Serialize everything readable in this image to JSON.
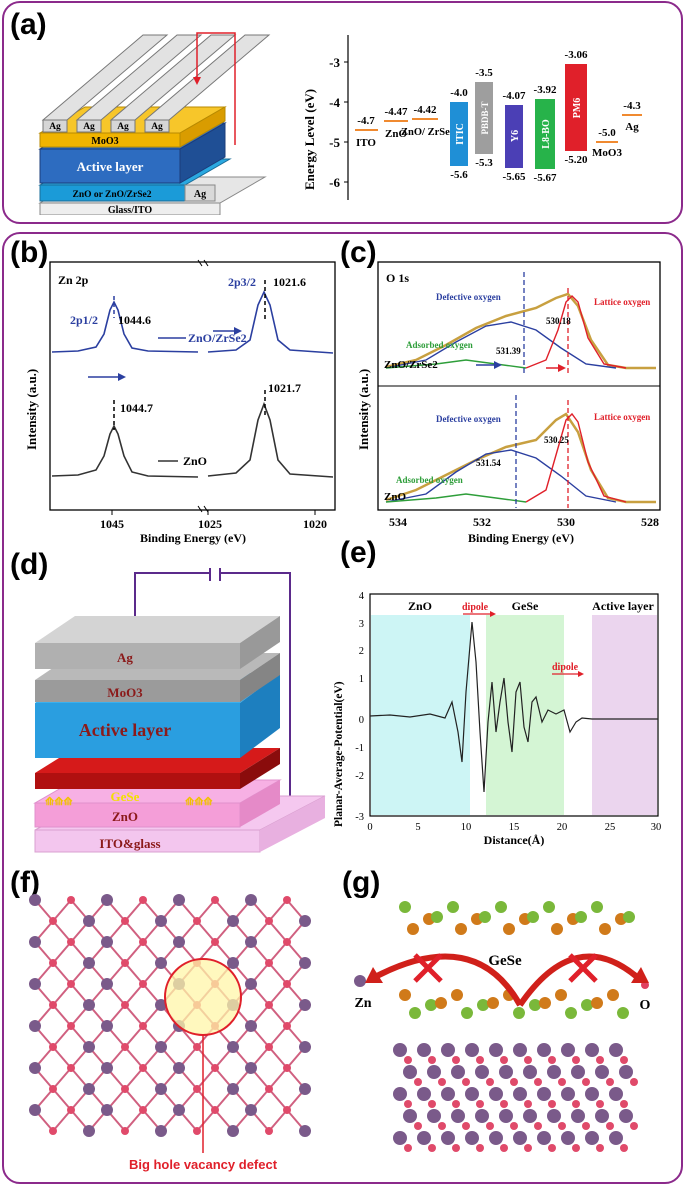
{
  "panels": {
    "a": {
      "label": "(a)",
      "device_layers": [
        "Ag",
        "Ag",
        "Ag",
        "Ag",
        "MoO3",
        "Active layer",
        "ZnO or ZnO/ZrSe2",
        "Ag",
        "Glass/ITO"
      ],
      "energy": {
        "ylabel": "Energy Level (eV)",
        "ticks": [
          "-3",
          "-4",
          "-5",
          "-6"
        ],
        "materials": [
          {
            "name": "ITO",
            "level": "-4.7"
          },
          {
            "name": "ZnO",
            "level": "-4.47"
          },
          {
            "name": "ZnO/ ZrSe2",
            "level": "-4.42"
          },
          {
            "name": "ITIC",
            "top": "-4.0",
            "bottom": "-5.6",
            "color": "#1f8fd6"
          },
          {
            "name": "PBDB-T",
            "top": "-3.5",
            "bottom": "-5.3",
            "color": "#9e9e9e"
          },
          {
            "name": "Y6",
            "top": "-4.07",
            "bottom": "-5.65",
            "color": "#4b3fb5"
          },
          {
            "name": "L8-BO",
            "top": "-3.92",
            "bottom": "-5.67",
            "color": "#27b34a"
          },
          {
            "name": "PM6",
            "top": "-3.06",
            "bottom": "-5.20",
            "color": "#e0202a"
          },
          {
            "name": "MoO3",
            "level": "-5.0"
          },
          {
            "name": "Ag",
            "level": "-4.3"
          }
        ]
      }
    },
    "b": {
      "label": "(b)",
      "title": "Zn 2p",
      "xlabel": "Binding Energy (eV)",
      "ylabel": "Intensity (a.u.)",
      "xticks": [
        "1045",
        "1025",
        "1020"
      ],
      "annotations": [
        "2p1/2",
        "1044.6",
        "2p3/2",
        "1021.6",
        "ZnO/ZrSe2",
        "1044.7",
        "1021.7",
        "ZnO"
      ]
    },
    "c": {
      "label": "(c)",
      "title": "O 1s",
      "xlabel": "Binding Energy (eV)",
      "ylabel": "Intensity (a.u.)",
      "xticks": [
        "534",
        "532",
        "530",
        "528"
      ],
      "annotations": [
        "Defective oxygen",
        "Lattice oxygen",
        "530.18",
        "Adsorbed oxygen",
        "531.39",
        "ZnO/ZrSe2",
        "Defective oxygen",
        "Lattice oxygen",
        "530.25",
        "531.54",
        "Adsorbed oxygen",
        "ZnO"
      ]
    },
    "d": {
      "label": "(d)",
      "layers": [
        "Ag",
        "MoO3",
        "Active layer",
        "GeSe",
        "ZnO",
        "ITO&glass"
      ]
    },
    "e": {
      "label": "(e)",
      "xlabel": "Distance(Å)",
      "ylabel": "Planar-Average-Potential(eV)",
      "xticks": [
        "0",
        "5",
        "10",
        "15",
        "20",
        "25",
        "30"
      ],
      "yticks": [
        "4",
        "3",
        "2",
        "1",
        "0",
        "-1",
        "-2",
        "-3"
      ],
      "regions": [
        "ZnO",
        "GeSe",
        "Active layer"
      ],
      "arrows": [
        "dipole",
        "dipole"
      ]
    },
    "f": {
      "label": "(f)",
      "caption": "Big hole vacancy defect"
    },
    "g": {
      "label": "(g)",
      "labels": [
        "GeSe",
        "Zn",
        "O"
      ]
    }
  },
  "colors": {
    "frame": "#8b2a8b",
    "red": "#e0202a",
    "blue": "#2b3fa0",
    "green": "#2e9e3a"
  }
}
